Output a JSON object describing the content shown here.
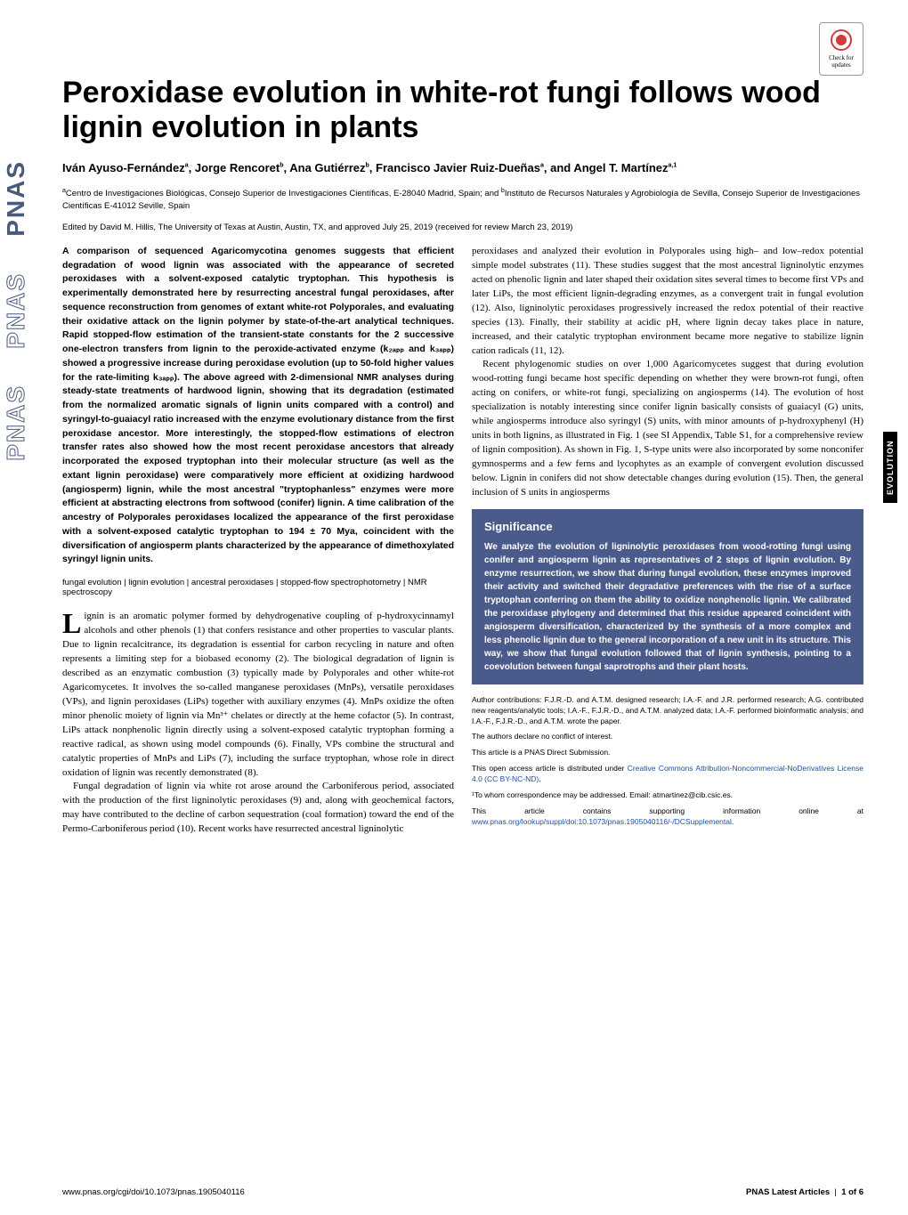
{
  "journal": "PNAS",
  "crossmark": {
    "label": "Check for updates"
  },
  "title": "Peroxidase evolution in white-rot fungi follows wood lignin evolution in plants",
  "authors_html": "Iván Ayuso-Fernández<sup>a</sup>, Jorge Rencoret<sup>b</sup>, Ana Gutiérrez<sup>b</sup>, Francisco Javier Ruiz-Dueñas<sup>a</sup>, and Angel T. Martínez<sup>a,1</sup>",
  "affiliations_html": "<sup>a</sup>Centro de Investigaciones Biológicas, Consejo Superior de Investigaciones Científicas, E-28040 Madrid, Spain; and <sup>b</sup>Instituto de Recursos Naturales y Agrobiología de Sevilla, Consejo Superior de Investigaciones Científicas E-41012 Seville, Spain",
  "edited": "Edited by David M. Hillis, The University of Texas at Austin, Austin, TX, and approved July 25, 2019 (received for review March 23, 2019)",
  "abstract": "A comparison of sequenced Agaricomycotina genomes suggests that efficient degradation of wood lignin was associated with the appearance of secreted peroxidases with a solvent-exposed catalytic tryptophan. This hypothesis is experimentally demonstrated here by resurrecting ancestral fungal peroxidases, after sequence reconstruction from genomes of extant white-rot Polyporales, and evaluating their oxidative attack on the lignin polymer by state-of-the-art analytical techniques. Rapid stopped-flow estimation of the transient-state constants for the 2 successive one-electron transfers from lignin to the peroxide-activated enzyme (k₂ₐₚₚ and k₃ₐₚₚ) showed a progressive increase during peroxidase evolution (up to 50-fold higher values for the rate-limiting k₃ₐₚₚ). The above agreed with 2-dimensional NMR analyses during steady-state treatments of hardwood lignin, showing that its degradation (estimated from the normalized aromatic signals of lignin units compared with a control) and syringyl-to-guaiacyl ratio increased with the enzyme evolutionary distance from the first peroxidase ancestor. More interestingly, the stopped-flow estimations of electron transfer rates also showed how the most recent peroxidase ancestors that already incorporated the exposed tryptophan into their molecular structure (as well as the extant lignin peroxidase) were comparatively more efficient at oxidizing hardwood (angiosperm) lignin, while the most ancestral \"tryptophanless\" enzymes were more efficient at abstracting electrons from softwood (conifer) lignin. A time calibration of the ancestry of Polyporales peroxidases localized the appearance of the first peroxidase with a solvent-exposed catalytic tryptophan to 194 ± 70 Mya, coincident with the diversification of angiosperm plants characterized by the appearance of dimethoxylated syringyl lignin units.",
  "keywords": "fungal evolution | lignin evolution | ancestral peroxidases | stopped-flow spectrophotometry | NMR spectroscopy",
  "body_left_p1": "Lignin is an aromatic polymer formed by dehydrogenative coupling of p-hydroxycinnamyl alcohols and other phenols (1) that confers resistance and other properties to vascular plants. Due to lignin recalcitrance, its degradation is essential for carbon recycling in nature and often represents a limiting step for a biobased economy (2). The biological degradation of lignin is described as an enzymatic combustion (3) typically made by Polyporales and other white-rot Agaricomycetes. It involves the so-called manganese peroxidases (MnPs), versatile peroxidases (VPs), and lignin peroxidases (LiPs) together with auxiliary enzymes (4). MnPs oxidize the often minor phenolic moiety of lignin via Mn³⁺ chelates or directly at the heme cofactor (5). In contrast, LiPs attack nonphenolic lignin directly using a solvent-exposed catalytic tryptophan forming a reactive radical, as shown using model compounds (6). Finally, VPs combine the structural and catalytic properties of MnPs and LiPs (7), including the surface tryptophan, whose role in direct oxidation of lignin was recently demonstrated (8).",
  "body_left_p2": "Fungal degradation of lignin via white rot arose around the Carboniferous period, associated with the production of the first ligninolytic peroxidases (9) and, along with geochemical factors, may have contributed to the decline of carbon sequestration (coal formation) toward the end of the Permo-Carboniferous period (10). Recent works have resurrected ancestral ligninolytic",
  "body_right_p1": "peroxidases and analyzed their evolution in Polyporales using high– and low–redox potential simple model substrates (11). These studies suggest that the most ancestral ligninolytic enzymes acted on phenolic lignin and later shaped their oxidation sites several times to become first VPs and later LiPs, the most efficient lignin-degrading enzymes, as a convergent trait in fungal evolution (12). Also, ligninolytic peroxidases progressively increased the redox potential of their reactive species (13). Finally, their stability at acidic pH, where lignin decay takes place in nature, increased, and their catalytic tryptophan environment became more negative to stabilize lignin cation radicals (11, 12).",
  "body_right_p2": "Recent phylogenomic studies on over 1,000 Agaricomycetes suggest that during evolution wood-rotting fungi became host specific depending on whether they were brown-rot fungi, often acting on conifers, or white-rot fungi, specializing on angiosperms (14). The evolution of host specialization is notably interesting since conifer lignin basically consists of guaiacyl (G) units, while angiosperms introduce also syringyl (S) units, with minor amounts of p-hydroxyphenyl (H) units in both lignins, as illustrated in Fig. 1 (see SI Appendix, Table S1, for a comprehensive review of lignin composition). As shown in Fig. 1, S-type units were also incorporated by some nonconifer gymnosperms and a few ferns and lycophytes as an example of convergent evolution discussed below. Lignin in conifers did not show detectable changes during evolution (15). Then, the general inclusion of S units in angiosperms",
  "significance": {
    "title": "Significance",
    "body": "We analyze the evolution of ligninolytic peroxidases from wood-rotting fungi using conifer and angiosperm lignin as representatives of 2 steps of lignin evolution. By enzyme resurrection, we show that during fungal evolution, these enzymes improved their activity and switched their degradative preferences with the rise of a surface tryptophan conferring on them the ability to oxidize nonphenolic lignin. We calibrated the peroxidase phylogeny and determined that this residue appeared coincident with angiosperm diversification, characterized by the synthesis of a more complex and less phenolic lignin due to the general incorporation of a new unit in its structure. This way, we show that fungal evolution followed that of lignin synthesis, pointing to a coevolution between fungal saprotrophs and their plant hosts."
  },
  "contributions": "Author contributions: F.J.R.-D. and A.T.M. designed research; I.A.-F. and J.R. performed research; A.G. contributed new reagents/analytic tools; I.A.-F., F.J.R.-D., and A.T.M. analyzed data; I.A.-F. performed bioinformatic analysis; and I.A.-F., F.J.R.-D., and A.T.M. wrote the paper.",
  "coi": "The authors declare no conflict of interest.",
  "submission": "This article is a PNAS Direct Submission.",
  "license_pre": "This open access article is distributed under ",
  "license_link": "Creative Commons Attribution-Noncommercial-NoDerivatives License 4.0 (CC BY-NC-ND)",
  "corresp": "¹To whom correspondence may be addressed. Email: atmartinez@cib.csic.es.",
  "suppl_pre": "This article contains supporting information online at ",
  "suppl_link": "www.pnas.org/lookup/suppl/doi:10.1073/pnas.1905040116/-/DCSupplemental",
  "section_tab": "EVOLUTION",
  "footer": {
    "left": "www.pnas.org/cgi/doi/10.1073/pnas.1905040116",
    "right_label": "PNAS Latest Articles",
    "right_page": "1 of 6"
  },
  "styling": {
    "page_bg": "#ffffff",
    "text_color": "#000000",
    "sidebar_color": "#4a5a7a",
    "sig_box_bg": "#4a5a8a",
    "sig_box_text": "#ffffff",
    "link_color": "#2050a0",
    "tab_bg": "#000000",
    "tab_text": "#ffffff",
    "crossmark_red": "#d63939",
    "title_fontsize": 34,
    "authors_fontsize": 13,
    "body_fontsize": 11,
    "abstract_fontsize": 10.5
  }
}
